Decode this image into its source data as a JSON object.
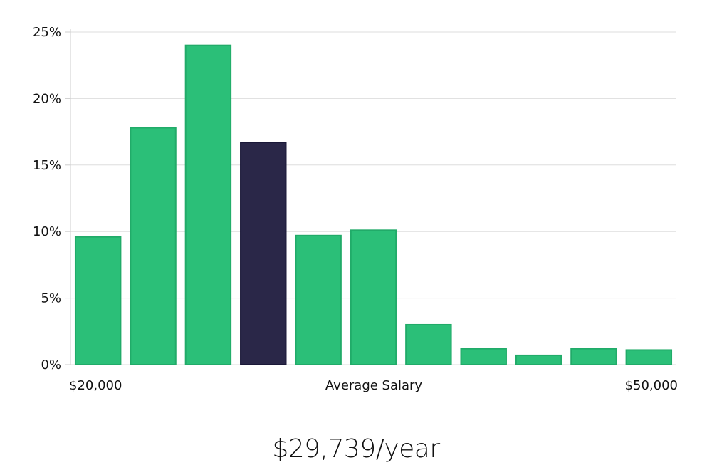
{
  "chart_data": {
    "type": "bar",
    "categories": [
      "$20,000",
      "",
      "",
      "",
      "",
      "",
      "",
      "",
      "",
      "",
      "$50,000"
    ],
    "values": [
      9.6,
      17.8,
      24.0,
      16.7,
      9.7,
      10.1,
      3.0,
      1.2,
      0.7,
      1.2,
      1.1
    ],
    "highlight_index": 3,
    "xlabel": "Average Salary",
    "ylabel": "",
    "ylim": [
      0,
      25
    ],
    "yticks": [
      "0%",
      "5%",
      "10%",
      "15%",
      "20%",
      "25%"
    ],
    "ytick_values": [
      0,
      5,
      10,
      15,
      20,
      25
    ],
    "x_edge_labels": [
      "$20,000",
      "$50,000"
    ],
    "grid": true,
    "colors": {
      "bar": "#2bbf78",
      "bar_stroke": "#21ab69",
      "highlight": "#2a2748",
      "highlight_stroke": "#1a1838"
    }
  },
  "caption": {
    "salary": "$29,739/year"
  }
}
